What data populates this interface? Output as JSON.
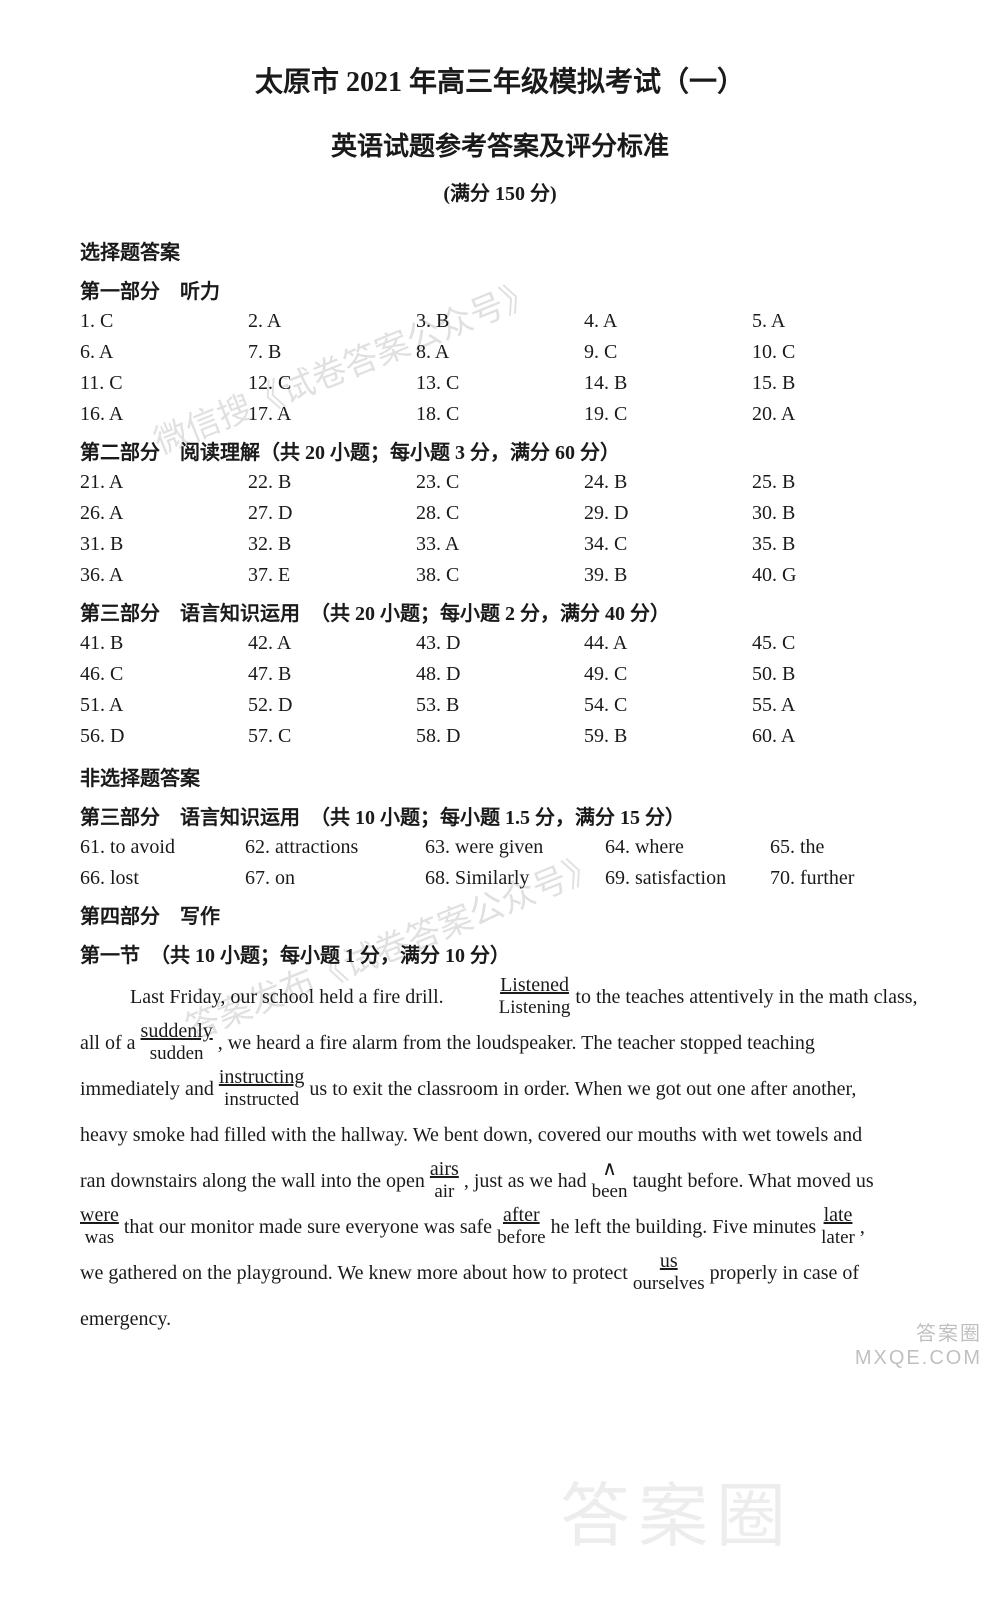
{
  "titles": {
    "main": "太原市 2021 年高三年级模拟考试（一）",
    "sub": "英语试题参考答案及评分标准",
    "score": "(满分 150 分)"
  },
  "mc_header": "选择题答案",
  "listening": {
    "header": "第一部分　听力",
    "items": [
      {
        "n": "1",
        "a": "C"
      },
      {
        "n": "2",
        "a": "A"
      },
      {
        "n": "3",
        "a": "B"
      },
      {
        "n": "4",
        "a": "A"
      },
      {
        "n": "5",
        "a": "A"
      },
      {
        "n": "6",
        "a": "A"
      },
      {
        "n": "7",
        "a": "B"
      },
      {
        "n": "8",
        "a": "A"
      },
      {
        "n": "9",
        "a": "C"
      },
      {
        "n": "10",
        "a": "C"
      },
      {
        "n": "11",
        "a": "C"
      },
      {
        "n": "12",
        "a": "C"
      },
      {
        "n": "13",
        "a": "C"
      },
      {
        "n": "14",
        "a": "B"
      },
      {
        "n": "15",
        "a": "B"
      },
      {
        "n": "16",
        "a": "A"
      },
      {
        "n": "17",
        "a": "A"
      },
      {
        "n": "18",
        "a": "C"
      },
      {
        "n": "19",
        "a": "C"
      },
      {
        "n": "20",
        "a": "A"
      }
    ]
  },
  "reading": {
    "header": "第二部分　阅读理解（共 20 小题；每小题 3 分，满分 60 分）",
    "items": [
      {
        "n": "21",
        "a": "A"
      },
      {
        "n": "22",
        "a": "B"
      },
      {
        "n": "23",
        "a": "C"
      },
      {
        "n": "24",
        "a": "B"
      },
      {
        "n": "25",
        "a": "B"
      },
      {
        "n": "26",
        "a": "A"
      },
      {
        "n": "27",
        "a": "D"
      },
      {
        "n": "28",
        "a": "C"
      },
      {
        "n": "29",
        "a": "D"
      },
      {
        "n": "30",
        "a": "B"
      },
      {
        "n": "31",
        "a": "B"
      },
      {
        "n": "32",
        "a": "B"
      },
      {
        "n": "33",
        "a": "A"
      },
      {
        "n": "34",
        "a": "C"
      },
      {
        "n": "35",
        "a": "B"
      },
      {
        "n": "36",
        "a": "A"
      },
      {
        "n": "37",
        "a": "E"
      },
      {
        "n": "38",
        "a": "C"
      },
      {
        "n": "39",
        "a": "B"
      },
      {
        "n": "40",
        "a": "G"
      }
    ]
  },
  "cloze": {
    "header": "第三部分　语言知识运用　（共 20 小题；每小题 2 分，满分 40 分）",
    "items": [
      {
        "n": "41",
        "a": "B"
      },
      {
        "n": "42",
        "a": "A"
      },
      {
        "n": "43",
        "a": "D"
      },
      {
        "n": "44",
        "a": "A"
      },
      {
        "n": "45",
        "a": "C"
      },
      {
        "n": "46",
        "a": "C"
      },
      {
        "n": "47",
        "a": "B"
      },
      {
        "n": "48",
        "a": "D"
      },
      {
        "n": "49",
        "a": "C"
      },
      {
        "n": "50",
        "a": "B"
      },
      {
        "n": "51",
        "a": "A"
      },
      {
        "n": "52",
        "a": "D"
      },
      {
        "n": "53",
        "a": "B"
      },
      {
        "n": "54",
        "a": "C"
      },
      {
        "n": "55",
        "a": "A"
      },
      {
        "n": "56",
        "a": "D"
      },
      {
        "n": "57",
        "a": "C"
      },
      {
        "n": "58",
        "a": "D"
      },
      {
        "n": "59",
        "a": "B"
      },
      {
        "n": "60",
        "a": "A"
      }
    ]
  },
  "nonmc_header": "非选择题答案",
  "fill": {
    "header": "第三部分　语言知识运用　（共 10 小题；每小题 1.5 分，满分 15 分）",
    "items": [
      {
        "n": "61",
        "a": "to avoid"
      },
      {
        "n": "62",
        "a": "attractions"
      },
      {
        "n": "63",
        "a": "were given"
      },
      {
        "n": "64",
        "a": "where"
      },
      {
        "n": "65",
        "a": "the"
      },
      {
        "n": "66",
        "a": "lost"
      },
      {
        "n": "67",
        "a": "on"
      },
      {
        "n": "68",
        "a": "Similarly"
      },
      {
        "n": "69",
        "a": "satisfaction"
      },
      {
        "n": "70",
        "a": "further"
      }
    ]
  },
  "writing": {
    "header": "第四部分　写作",
    "sub": "第一节　（共 10 小题；每小题 1 分，满分 10 分）"
  },
  "essay": {
    "l1a": "Last Friday, our school held a fire drill. ",
    "c1_wrong": "Listened",
    "c1_right": "Listening",
    "l1b": " to the teaches attentively in the math class,",
    "l2a": "all of a ",
    "c2_wrong": "suddenly",
    "c2_right": "sudden",
    "l2b": ", we heard a fire alarm from the loudspeaker. The teacher stopped teaching",
    "l3a": "immediately and ",
    "c3_wrong": "instructing",
    "c3_right": "instructed",
    "l3b": " us to exit the classroom in order. When we got out one after another,",
    "l4": "heavy smoke had filled with the hallway. We bent down, covered our mouths with wet towels and",
    "l5a": "ran downstairs along the wall into the open ",
    "c4_wrong": "airs",
    "c4_right": "air",
    "l5b": ", just as we had ",
    "ins_mark": "∧",
    "ins_word": "been",
    "l5c": " taught before. What moved us",
    "l6a_wrong": "were",
    "l6a_right": "was",
    "l6b": " that our monitor made sure everyone was safe ",
    "c5_wrong": "after",
    "c5_right": "before",
    "l6c": " he left the building. Five minutes ",
    "c6_wrong": "late",
    "c6_right": "later",
    "l6d": ",",
    "l7a": "we gathered on the playground. We knew more about how to protect ",
    "c7_wrong": "us",
    "c7_right": "ourselves",
    "l7b": " properly in case of",
    "l8": "emergency."
  },
  "watermarks": {
    "wm1": "微信搜《试卷答案公众号》",
    "wm2": "答案发布《试卷答案公众号》",
    "corner1": "答案圈",
    "corner2": "MXQE.COM"
  },
  "style": {
    "page_bg": "#ffffff",
    "text_color": "#1a1a1a",
    "wm_color": "rgba(0,0,0,0.12)"
  }
}
